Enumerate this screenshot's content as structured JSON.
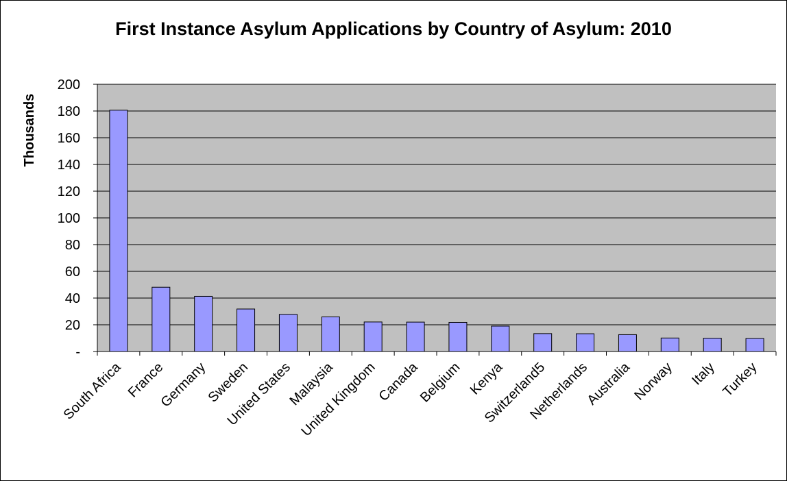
{
  "chart_data": {
    "type": "bar",
    "title": "First Instance Asylum Applications by Country of Asylum: 2010",
    "xlabel": "",
    "ylabel": "Thousands",
    "ylim": [
      0,
      200
    ],
    "yticks": [
      0,
      20,
      40,
      60,
      80,
      100,
      120,
      140,
      160,
      180,
      200
    ],
    "ytick_labels": [
      "-",
      "20",
      "40",
      "60",
      "80",
      "100",
      "120",
      "140",
      "160",
      "180",
      "200"
    ],
    "grid": true,
    "legend": "none",
    "categories": [
      "South Africa",
      "France",
      "Germany",
      "Sweden",
      "United States",
      "Malaysia",
      "United Kingdom",
      "Canada",
      "Belgium",
      "Kenya",
      "Switzerland5",
      "Netherlands",
      "Australia",
      "Norway",
      "Italy",
      "Turkey"
    ],
    "values": [
      180.6,
      48.1,
      41.3,
      31.8,
      27.8,
      25.9,
      22.1,
      22.0,
      21.8,
      19.0,
      13.4,
      13.3,
      12.6,
      10.1,
      10.0,
      9.8
    ],
    "colors": {
      "bar_fill": "#9999ff",
      "bar_stroke": "#000000",
      "plot_background": "#c0c0c0",
      "gridline": "#000000"
    }
  }
}
